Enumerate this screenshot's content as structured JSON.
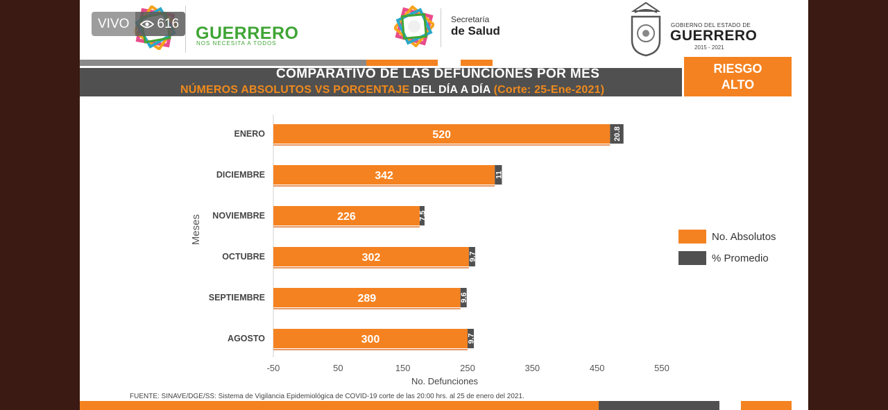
{
  "live_badge": {
    "label": "VIVO",
    "viewers": "616"
  },
  "header": {
    "guerrero_logo": {
      "name": "GUERRERO",
      "tagline": "NOS NECESITA A TODOS"
    },
    "secretaria": {
      "line1": "Secretaría",
      "line2": "de Salud"
    },
    "gobierno": {
      "line1": "GOBIERNO DEL ESTADO DE",
      "line2": "GUERRERO",
      "years": "2015 - 2021"
    }
  },
  "title": {
    "line1": "COMPARATIVO DE LAS DEFUNCIONES POR MES",
    "line2_part1": "NÚMEROS ABSOLUTOS VS PORCENTAJE",
    "line2_part2": " DEL DÍA A DÍA ",
    "line2_part3": "(Corte: 25-Ene-2021)"
  },
  "risk_badge": {
    "line1": "RIESGO",
    "line2": "ALTO"
  },
  "legend": {
    "absolute": "No. Absolutos",
    "percent": "% Promedio"
  },
  "colors": {
    "orange": "#f58220",
    "dark": "#505050",
    "green": "#3fa535"
  },
  "source": "FUENTE: SINAVE/DGE/SS: Sistema de Vigilancia Epidemiológica de COVID-19 corte de las 20:00 hrs. al 25 de  enero del 2021.",
  "chart_data": {
    "type": "bar",
    "orientation": "horizontal",
    "stacked": true,
    "title": "COMPARATIVO DE LAS DEFUNCIONES POR MES",
    "xlabel": "No. Defunciones",
    "ylabel": "Meses",
    "xlim": [
      -50,
      550
    ],
    "xticks": [
      "-50",
      "50",
      "150",
      "250",
      "350",
      "450",
      "550"
    ],
    "categories": [
      "ENERO",
      "DICIEMBRE",
      "NOVIEMBRE",
      "OCTUBRE",
      "SEPTIEMBRE",
      "AGOSTO"
    ],
    "series": [
      {
        "name": "No. Absolutos",
        "values": [
          520,
          342,
          226,
          302,
          289,
          300
        ],
        "labels": [
          "520",
          "342",
          "226",
          "302",
          "289",
          "300"
        ]
      },
      {
        "name": "% Promedio",
        "values": [
          20.8,
          11,
          7.5,
          9.7,
          9.6,
          9.7
        ],
        "labels": [
          "20.8",
          "11",
          "7.5",
          "9.7",
          "9.6",
          "9.7"
        ]
      }
    ],
    "legend_position": "right",
    "grid": false
  }
}
